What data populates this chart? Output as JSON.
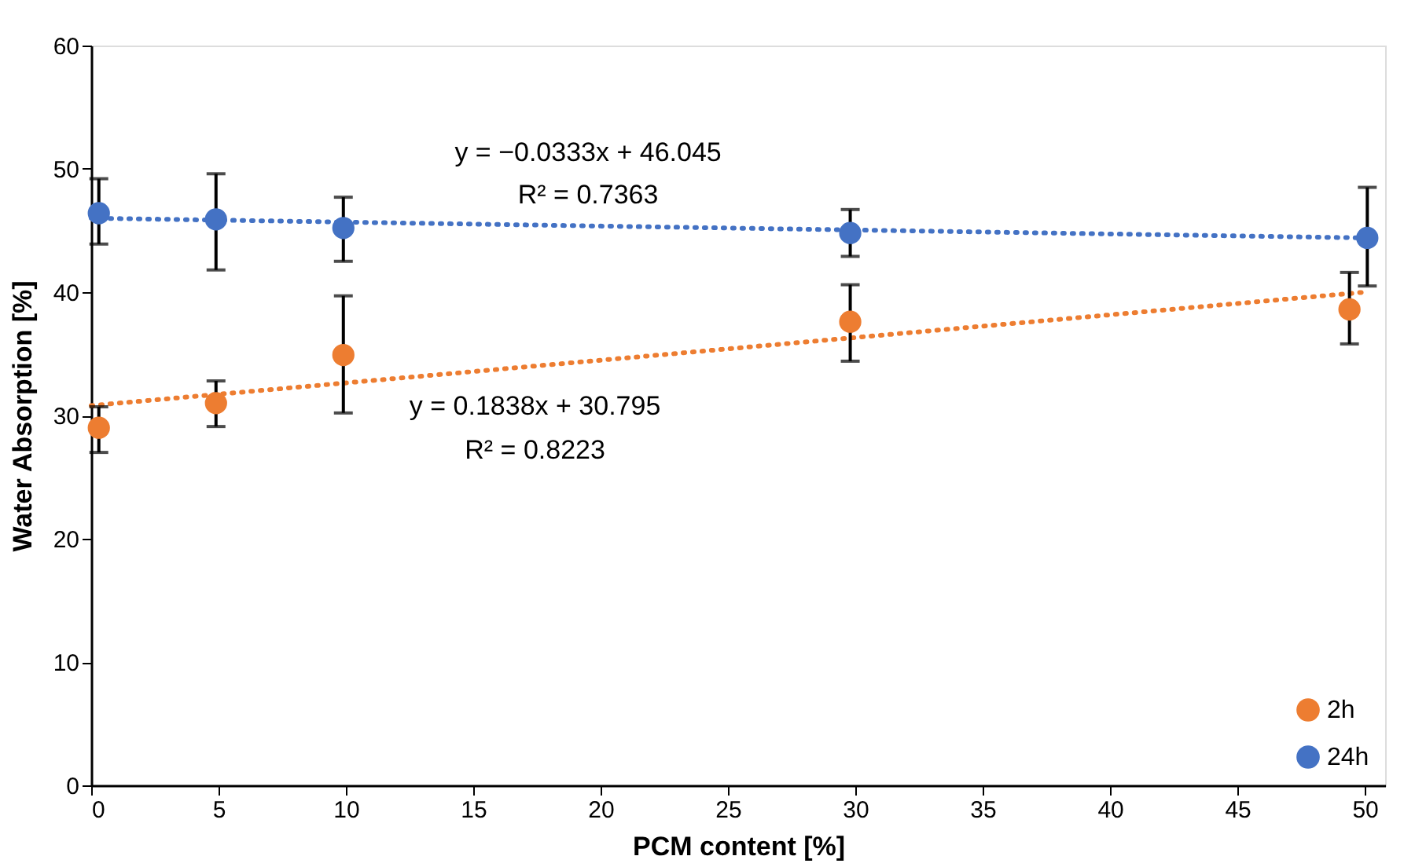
{
  "chart_data": {
    "type": "scatter",
    "xlabel": "PCM content [%]",
    "ylabel": "Water Absorption [%]",
    "xlim": [
      0,
      50.8
    ],
    "xticks": [
      0,
      5,
      10,
      15,
      20,
      25,
      30,
      35,
      40,
      45,
      50
    ],
    "ylim": [
      0,
      60
    ],
    "yticks": [
      0,
      10,
      20,
      30,
      40,
      50,
      60
    ],
    "grid": false,
    "legend": "bottom right",
    "marker": "circle",
    "series": [
      {
        "name": "2h",
        "color": "#ed7d31",
        "x": [
          0.3,
          4.9,
          9.9,
          29.8,
          49.4
        ],
        "values": [
          29.0,
          31.0,
          34.9,
          37.6,
          38.6
        ],
        "errors": [
          [
            27.0,
            30.7
          ],
          [
            29.1,
            32.8
          ],
          [
            30.2,
            39.7
          ],
          [
            34.4,
            40.6
          ],
          [
            35.8,
            41.6
          ]
        ]
      },
      {
        "name": "24h",
        "color": "#4472c4",
        "x": [
          0.3,
          4.9,
          9.9,
          29.8,
          50.1
        ],
        "values": [
          46.4,
          45.9,
          45.2,
          44.8,
          44.4
        ],
        "errors": [
          [
            43.9,
            49.2
          ],
          [
            41.8,
            49.6
          ],
          [
            42.5,
            47.7
          ],
          [
            42.9,
            46.7
          ],
          [
            40.5,
            48.5
          ]
        ]
      },
      {
        "type": "line",
        "color": "#ed7d31",
        "line_style": "dotted",
        "marker": "none",
        "x": [
          0,
          50
        ],
        "values": [
          30.8,
          40.0
        ]
      },
      {
        "type": "line",
        "color": "#4472c4",
        "line_style": "dotted",
        "marker": "none",
        "x": [
          0,
          50
        ],
        "values": [
          46.0,
          44.4
        ]
      }
    ],
    "annotations": [
      "y = −0.0333x + 46.045",
      "R² = 0.7363",
      "y = 0.1838x + 30.795",
      "R² = 0.8223"
    ]
  }
}
